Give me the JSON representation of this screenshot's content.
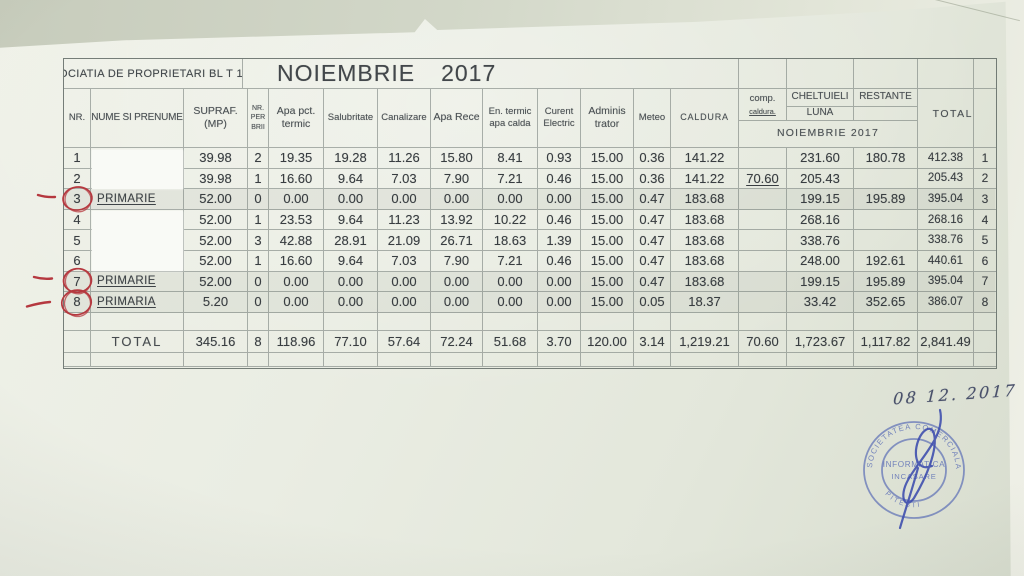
{
  "document": {
    "association": "OCIATIA DE PROPRIETARI BL T 1",
    "title_month": "NOIEMBRIE",
    "title_year": "2017",
    "handwritten_date": "08 12. 2017",
    "stamp": {
      "arc_top": "SOCIETATEA COMERCIALA",
      "arc_bottom": "PITESTI",
      "line1": "INFORMATICA",
      "line2": "INCASARE"
    }
  },
  "colors": {
    "annotation_red": "#b5383f",
    "stamp_blue": "#5568b4",
    "ink_blue": "#3c4cae",
    "paper": "#eaede3"
  },
  "annotations": {
    "red_circled_row_numbers": [
      "3",
      "7",
      "8"
    ],
    "red_margin_dashes_rows": [
      "3",
      "7",
      "8"
    ]
  },
  "table": {
    "headers": {
      "nr": "NR.",
      "name": "NUME SI PRENUME",
      "supraf": "SUPRAF.\n(MP)",
      "nr_per": "NR.\nPER\nBRII",
      "apa_pct": "Apa pct.\ntermic",
      "salubritate": "Salubritate",
      "canalizare": "Canalizare",
      "apa_rece": "Apa Rece",
      "en_termic": "En. termic\napa calda",
      "curent": "Curent\nElectric",
      "administrator": "Adminis\ntrator",
      "meteo": "Meteo",
      "caldura": "CALDURA",
      "comp": "comp.",
      "comp_sub": "caldura.",
      "cheltuieli": "CHELTUIELI",
      "luna": "LUNA",
      "restante": "RESTANTE",
      "luna_span": "NOIEMBRIE   2017",
      "total": "TOTAL"
    },
    "rows": [
      {
        "cells": [
          "1",
          "",
          "39.98",
          "2",
          "19.35",
          "19.28",
          "11.26",
          "15.80",
          "8.41",
          "0.93",
          "15.00",
          "0.36",
          "141.22",
          "",
          "231.60",
          "180.78",
          "412.38",
          "1"
        ],
        "redacted": true,
        "primarie": false,
        "comp_underline": false
      },
      {
        "cells": [
          "2",
          "",
          "39.98",
          "1",
          "16.60",
          "9.64",
          "7.03",
          "7.90",
          "7.21",
          "0.46",
          "15.00",
          "0.36",
          "141.22",
          "70.60",
          "205.43",
          "",
          "205.43",
          "2"
        ],
        "redacted": true,
        "primarie": false,
        "comp_underline": true
      },
      {
        "cells": [
          "3",
          "PRIMARIE",
          "52.00",
          "0",
          "0.00",
          "0.00",
          "0.00",
          "0.00",
          "0.00",
          "0.00",
          "15.00",
          "0.47",
          "183.68",
          "",
          "199.15",
          "195.89",
          "395.04",
          "3"
        ],
        "redacted": false,
        "primarie": true,
        "comp_underline": false
      },
      {
        "cells": [
          "4",
          "",
          "52.00",
          "1",
          "23.53",
          "9.64",
          "11.23",
          "13.92",
          "10.22",
          "0.46",
          "15.00",
          "0.47",
          "183.68",
          "",
          "268.16",
          "",
          "268.16",
          "4"
        ],
        "redacted": true,
        "primarie": false,
        "comp_underline": false
      },
      {
        "cells": [
          "5",
          "",
          "52.00",
          "3",
          "42.88",
          "28.91",
          "21.09",
          "26.71",
          "18.63",
          "1.39",
          "15.00",
          "0.47",
          "183.68",
          "",
          "338.76",
          "",
          "338.76",
          "5"
        ],
        "redacted": true,
        "primarie": false,
        "comp_underline": false
      },
      {
        "cells": [
          "6",
          "",
          "52.00",
          "1",
          "16.60",
          "9.64",
          "7.03",
          "7.90",
          "7.21",
          "0.46",
          "15.00",
          "0.47",
          "183.68",
          "",
          "248.00",
          "192.61",
          "440.61",
          "6"
        ],
        "redacted": true,
        "primarie": false,
        "comp_underline": false
      },
      {
        "cells": [
          "7",
          "PRIMARIE",
          "52.00",
          "0",
          "0.00",
          "0.00",
          "0.00",
          "0.00",
          "0.00",
          "0.00",
          "15.00",
          "0.47",
          "183.68",
          "",
          "199.15",
          "195.89",
          "395.04",
          "7"
        ],
        "redacted": false,
        "primarie": true,
        "comp_underline": false
      },
      {
        "cells": [
          "8",
          "PRIMARIA",
          "5.20",
          "0",
          "0.00",
          "0.00",
          "0.00",
          "0.00",
          "0.00",
          "0.00",
          "15.00",
          "0.05",
          "18.37",
          "",
          "33.42",
          "352.65",
          "386.07",
          "8"
        ],
        "redacted": false,
        "primarie": true,
        "comp_underline": false
      }
    ],
    "total_row": {
      "cells": [
        "",
        "TOTAL",
        "345.16",
        "8",
        "118.96",
        "77.10",
        "57.64",
        "72.24",
        "51.68",
        "3.70",
        "120.00",
        "3.14",
        "1,219.21",
        "70.60",
        "1,723.67",
        "1,117.82",
        "2,841.49",
        ""
      ]
    }
  }
}
